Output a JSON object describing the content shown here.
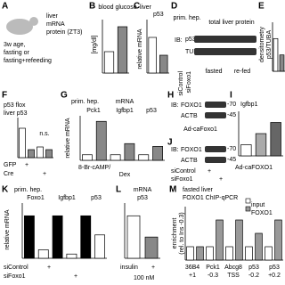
{
  "panels": [
    {
      "letter": "A",
      "texts": [
        "liver",
        "mRNA",
        "protein (ZT3)",
        "3w age,",
        "fasting or",
        "fasting+refeeding"
      ]
    },
    {
      "letter": "B",
      "texts": [
        "blood glucose",
        "[mg/dl]"
      ],
      "bars": [
        60,
        130
      ],
      "ylim": [
        0,
        150
      ],
      "bar_colors": [
        "#ffffff",
        "#888888"
      ]
    },
    {
      "letter": "C",
      "texts": [
        "liver",
        "p53",
        "relative mRNA"
      ],
      "bars": [
        1,
        0.5
      ],
      "ylim": [
        0,
        1.5
      ],
      "bar_colors": [
        "#ffffff",
        "#888888"
      ]
    },
    {
      "letter": "D",
      "texts": [
        "IB:",
        "p53",
        "TUBA",
        "prim. hep.",
        "total liver protein",
        "siControl",
        "siFoxo1",
        "fasted",
        "re-fed"
      ]
    },
    {
      "letter": "E",
      "texts": [
        "densitometry",
        "p53/TUBA"
      ],
      "bars": [
        1,
        0.5
      ],
      "ylim": [
        0,
        1.5
      ],
      "bar_colors": [
        "#ffffff",
        "#888888"
      ]
    },
    {
      "letter": "F",
      "texts": [
        "p53 flox",
        "liver p53",
        "n.s.",
        "GFP",
        "Cre",
        "+",
        "+"
      ],
      "bars": [
        1.1,
        0.3,
        0.4,
        0.3
      ],
      "ylim": [
        0,
        1.5
      ],
      "bar_colors": [
        "#ffffff",
        "#888888",
        "#ffffff",
        "#888888"
      ]
    },
    {
      "letter": "G",
      "texts": [
        "prim. hep.",
        "mRNA",
        "Pck1",
        "Igfbp1",
        "p53",
        "relative mRNA",
        "8-Br-cAMP/",
        "Dex"
      ],
      "bars": [
        1,
        7,
        1,
        3,
        1,
        2.5
      ],
      "ylim": [
        0,
        8
      ],
      "bar_colors": [
        "#ffffff",
        "#888888",
        "#ffffff",
        "#888888",
        "#ffffff",
        "#888888"
      ]
    },
    {
      "letter": "H",
      "texts": [
        "IB:",
        "FOXO1",
        "ACTB",
        "-70",
        "-45",
        "Ad-caFoxo1"
      ]
    },
    {
      "letter": "I",
      "texts": [
        "Igfbp1",
        "Ad-caFOXO1"
      ],
      "bars": [
        1,
        2,
        3
      ],
      "ylim": [
        0,
        4
      ],
      "bar_colors": [
        "#ffffff",
        "#aaaaaa",
        "#666666"
      ]
    },
    {
      "letter": "J",
      "texts": [
        "IB:",
        "FOXO1",
        "ACTB",
        "-70",
        "-45",
        "siControl",
        "siFoxo1",
        "+",
        "+"
      ]
    },
    {
      "letter": "K",
      "texts": [
        "prim. hep.",
        "Foxo1",
        "Igfbp1",
        "p53",
        "relative mRNA",
        "siControl",
        "siFoxo1",
        "+",
        "+"
      ],
      "bars": [
        1,
        0.2,
        1,
        0.1,
        1,
        0.55
      ],
      "ylim": [
        0,
        1.3
      ],
      "bar_colors": [
        "#000000",
        "#ffffff",
        "#000000",
        "#ffffff",
        "#000000",
        "#ffffff"
      ]
    },
    {
      "letter": "L",
      "texts": [
        "mRNA",
        "p53",
        "insulin",
        "+",
        "100 nM"
      ],
      "bars": [
        1,
        0.5
      ],
      "ylim": [
        0,
        1.3
      ],
      "bar_colors": [
        "#ffffff",
        "#888888"
      ]
    },
    {
      "letter": "M",
      "texts": [
        "fasted liver",
        "FOXO1 ChIP-qPCR",
        "input",
        "FOXO1",
        "enrichment",
        "(rel. to Ins -0.3)",
        "36B4",
        "+1",
        "Pck1",
        "-0.3",
        "Abcg8",
        "TSS",
        "p53",
        "-0.2",
        "p53",
        "+0.2"
      ],
      "bars": [
        1,
        1,
        1,
        3,
        1,
        3,
        1,
        2,
        1,
        3
      ],
      "ylim": [
        0,
        4
      ],
      "bar_colors": [
        "#ffffff",
        "#999999",
        "#ffffff",
        "#999999",
        "#ffffff",
        "#999999",
        "#ffffff",
        "#999999",
        "#ffffff",
        "#999999"
      ]
    }
  ]
}
